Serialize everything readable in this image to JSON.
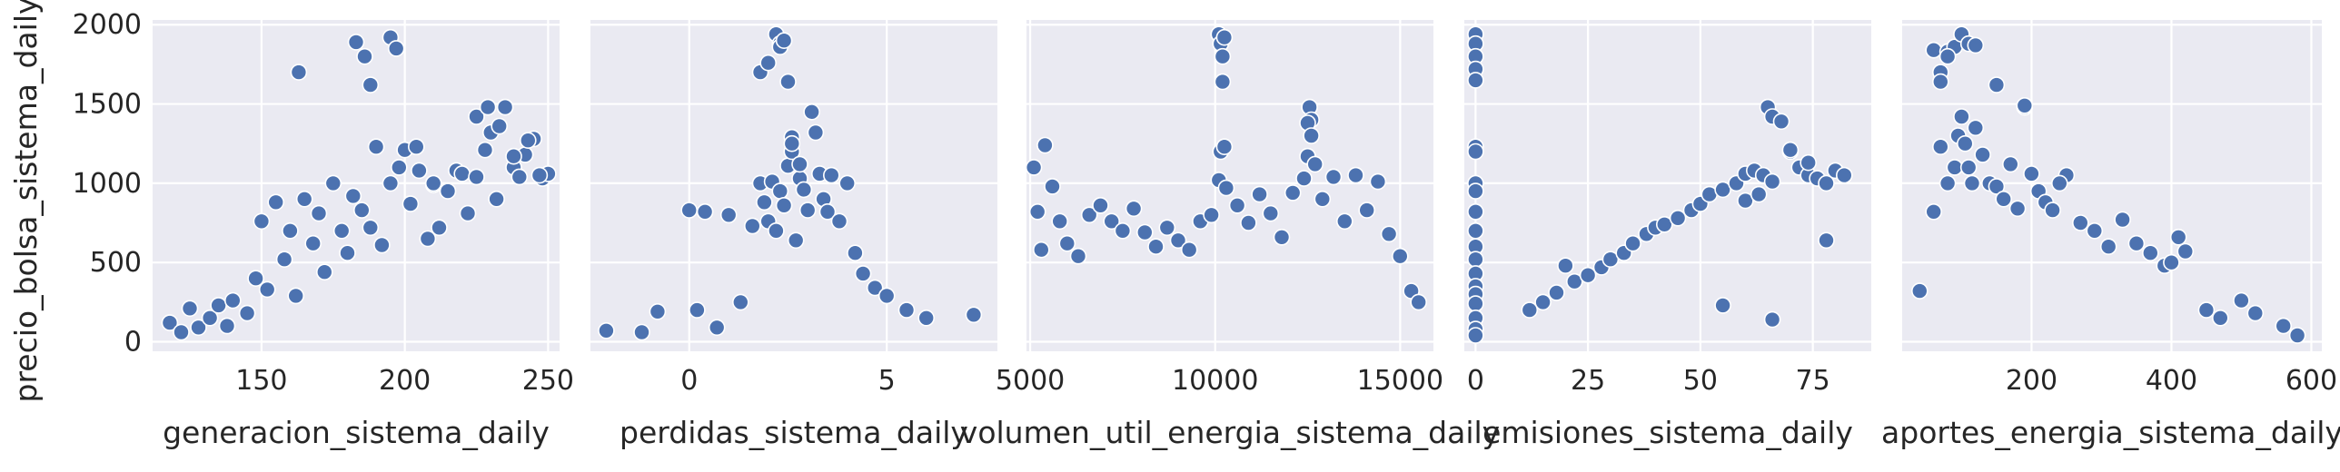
{
  "figure": {
    "ylabel": "precio_bolsa_sistema_daily",
    "yticks": [
      0,
      500,
      1000,
      1500,
      2000
    ],
    "style": {
      "panel_bg": "#EAEAF2",
      "grid": "#FFFFFF",
      "marker": "#4C72B0",
      "marker_edge": "#FFFFFF"
    }
  },
  "chart_data": [
    {
      "type": "scatter",
      "xlabel": "generacion_sistema_daily",
      "ylabel": "precio_bolsa_sistema_daily",
      "xlim": [
        112,
        254
      ],
      "ylim": [
        -60,
        2030
      ],
      "xticks": [
        150,
        200,
        250
      ],
      "grid": true,
      "x": [
        118,
        122,
        125,
        128,
        132,
        135,
        138,
        140,
        145,
        148,
        150,
        152,
        155,
        158,
        160,
        162,
        165,
        168,
        170,
        172,
        175,
        178,
        180,
        182,
        185,
        188,
        190,
        192,
        195,
        198,
        200,
        202,
        205,
        208,
        210,
        212,
        215,
        218,
        220,
        222,
        225,
        228,
        230,
        232,
        235,
        238,
        240,
        242,
        245,
        248,
        250,
        163,
        183,
        188,
        195,
        197,
        204,
        225,
        229,
        233,
        238,
        243,
        247,
        186,
        210
      ],
      "y": [
        120,
        60,
        210,
        90,
        150,
        230,
        100,
        260,
        180,
        400,
        760,
        330,
        880,
        520,
        700,
        290,
        900,
        620,
        810,
        440,
        1000,
        700,
        560,
        920,
        830,
        720,
        1230,
        610,
        1000,
        1100,
        1210,
        870,
        1080,
        650,
        990,
        720,
        950,
        1080,
        1060,
        810,
        1040,
        1210,
        1320,
        900,
        1480,
        1100,
        1040,
        1180,
        1280,
        1030,
        1060,
        1700,
        1890,
        1620,
        1920,
        1850,
        1230,
        1420,
        1480,
        1360,
        1170,
        1270,
        1050,
        1800,
        1000
      ]
    },
    {
      "type": "scatter",
      "xlabel": "perdidas_sistema_daily",
      "ylabel": "precio_bolsa_sistema_daily",
      "xlim": [
        -2.5,
        7.8
      ],
      "ylim": [
        -60,
        2030
      ],
      "xticks": [
        0,
        5
      ],
      "grid": true,
      "x": [
        -2.1,
        -1.2,
        -0.8,
        0,
        0.2,
        0.4,
        0.7,
        1.0,
        1.3,
        1.6,
        1.8,
        1.9,
        2.0,
        2.1,
        2.2,
        2.3,
        2.4,
        2.5,
        2.6,
        2.7,
        2.8,
        2.9,
        3.0,
        3.1,
        3.2,
        3.3,
        3.4,
        3.5,
        3.6,
        3.8,
        4.0,
        4.2,
        4.4,
        4.7,
        5.0,
        5.5,
        6.0,
        7.2,
        1.8,
        2.0,
        2.2,
        2.3,
        2.5,
        2.6,
        2.8,
        2.3,
        2.4,
        2.6
      ],
      "y": [
        70,
        60,
        190,
        830,
        200,
        820,
        90,
        800,
        250,
        730,
        1000,
        880,
        760,
        1010,
        700,
        950,
        860,
        1110,
        1200,
        640,
        1030,
        960,
        830,
        1450,
        1320,
        1060,
        900,
        820,
        1050,
        760,
        1000,
        560,
        430,
        340,
        290,
        200,
        150,
        170,
        1700,
        1760,
        1940,
        1880,
        1640,
        1290,
        1120,
        1860,
        1900,
        1250
      ]
    },
    {
      "type": "scatter",
      "xlabel": "volumen_util_energia_sistema_daily",
      "ylabel": "precio_bolsa_sistema_daily",
      "xlim": [
        4900,
        15900
      ],
      "ylim": [
        -60,
        2030
      ],
      "xticks": [
        5000,
        10000,
        15000
      ],
      "grid": true,
      "x": [
        5100,
        5200,
        5300,
        5400,
        5600,
        5800,
        6000,
        6300,
        6600,
        6900,
        7200,
        7500,
        7800,
        8100,
        8400,
        8700,
        9000,
        9300,
        9600,
        9900,
        10100,
        10150,
        10200,
        10250,
        10300,
        10600,
        10900,
        11200,
        11500,
        11800,
        12100,
        12400,
        12500,
        12550,
        12600,
        12900,
        13200,
        13500,
        13800,
        14100,
        14400,
        14700,
        15000,
        15300,
        15500,
        10100,
        10150,
        10200,
        10250,
        12500,
        12600,
        12700
      ],
      "y": [
        1100,
        820,
        580,
        1240,
        980,
        760,
        620,
        540,
        800,
        860,
        760,
        700,
        840,
        690,
        600,
        720,
        640,
        580,
        760,
        800,
        1020,
        1200,
        1640,
        1230,
        970,
        860,
        750,
        930,
        810,
        660,
        940,
        1030,
        1170,
        1480,
        1400,
        900,
        1040,
        760,
        1050,
        830,
        1010,
        680,
        540,
        320,
        250,
        1940,
        1880,
        1800,
        1920,
        1380,
        1300,
        1120
      ]
    },
    {
      "type": "scatter",
      "xlabel": "emisiones_sistema_daily",
      "ylabel": "precio_bolsa_sistema_daily",
      "xlim": [
        -2.5,
        88
      ],
      "ylim": [
        -60,
        2030
      ],
      "xticks": [
        0,
        25,
        50,
        75
      ],
      "grid": true,
      "x": [
        0,
        0,
        0,
        0,
        0,
        0,
        0,
        0,
        0,
        0,
        0,
        0,
        0,
        0,
        0,
        0,
        0,
        0,
        0,
        0,
        12,
        15,
        18,
        20,
        22,
        25,
        28,
        30,
        33,
        35,
        38,
        40,
        42,
        45,
        48,
        50,
        52,
        55,
        58,
        60,
        62,
        64,
        65,
        66,
        68,
        70,
        72,
        74,
        76,
        78,
        80,
        82,
        60,
        63,
        66,
        70,
        74,
        78,
        55,
        66
      ],
      "y": [
        1940,
        1880,
        1800,
        1720,
        1650,
        1230,
        1200,
        1000,
        950,
        820,
        700,
        600,
        520,
        430,
        350,
        300,
        240,
        150,
        80,
        40,
        200,
        250,
        310,
        480,
        380,
        420,
        470,
        520,
        560,
        620,
        680,
        720,
        740,
        780,
        830,
        870,
        930,
        960,
        1000,
        1060,
        1080,
        1050,
        1480,
        1420,
        1390,
        1200,
        1100,
        1050,
        1030,
        1000,
        1080,
        1050,
        890,
        930,
        1010,
        1210,
        1130,
        640,
        230,
        140
      ]
    },
    {
      "type": "scatter",
      "xlabel": "aportes_energia_sistema_daily",
      "ylabel": "precio_bolsa_sistema_daily",
      "xlim": [
        15,
        615
      ],
      "ylim": [
        -60,
        2030
      ],
      "xticks": [
        200,
        400,
        600
      ],
      "grid": true,
      "x": [
        40,
        60,
        70,
        80,
        90,
        95,
        100,
        105,
        110,
        115,
        120,
        130,
        140,
        150,
        160,
        170,
        180,
        190,
        200,
        210,
        220,
        230,
        250,
        270,
        290,
        310,
        330,
        350,
        370,
        390,
        410,
        420,
        450,
        470,
        500,
        520,
        560,
        580,
        60,
        70,
        80,
        90,
        100,
        110,
        120,
        150,
        190,
        240,
        400,
        70,
        80
      ],
      "y": [
        320,
        820,
        1230,
        1000,
        1100,
        1300,
        1420,
        1250,
        1100,
        1000,
        1350,
        1180,
        1000,
        980,
        900,
        1120,
        840,
        1480,
        1060,
        950,
        880,
        830,
        1050,
        750,
        700,
        600,
        770,
        620,
        560,
        480,
        660,
        570,
        200,
        150,
        260,
        180,
        100,
        40,
        1840,
        1700,
        1830,
        1860,
        1940,
        1880,
        1870,
        1620,
        1490,
        1000,
        500,
        1640,
        1800
      ]
    }
  ]
}
